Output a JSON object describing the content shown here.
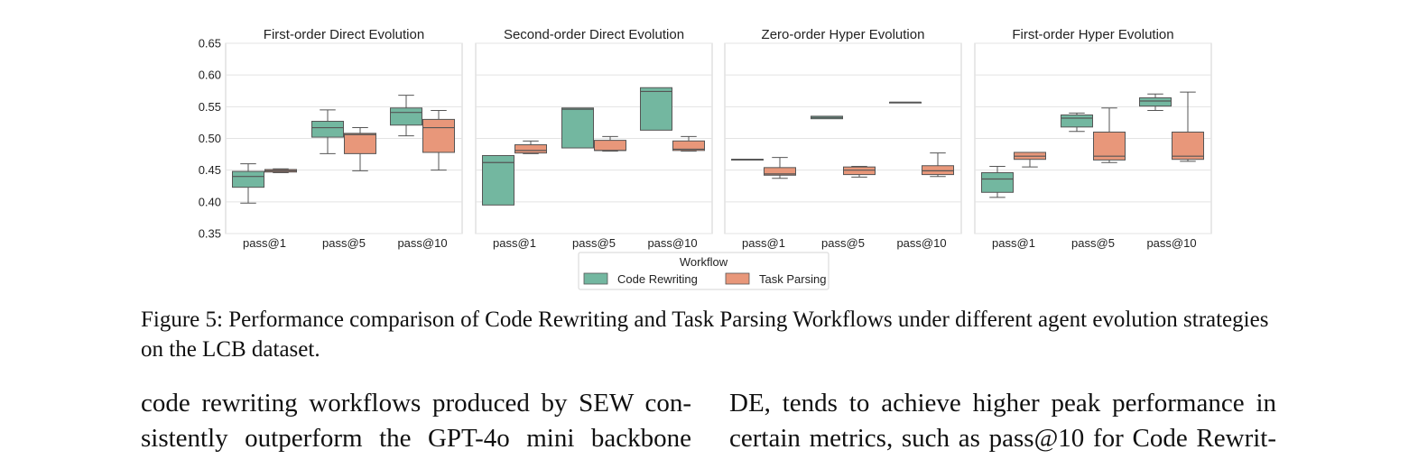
{
  "chart_data": {
    "type": "box",
    "y_axis": {
      "ylim": [
        0.35,
        0.65
      ],
      "ticks": [
        0.35,
        0.4,
        0.45,
        0.5,
        0.55,
        0.6,
        0.65
      ],
      "tick_labels": [
        "0.35",
        "0.40",
        "0.45",
        "0.50",
        "0.55",
        "0.60",
        "0.65"
      ]
    },
    "grid": true,
    "categories": [
      "pass@1",
      "pass@5",
      "pass@10"
    ],
    "colors": {
      "Code Rewriting": "#73b7a0",
      "Task Parsing": "#e8977a"
    },
    "legend": {
      "title": "Workflow",
      "placement": "bottom-center",
      "entries": [
        "Code Rewriting",
        "Task Parsing"
      ]
    },
    "panels": [
      {
        "title": "First-order Direct Evolution",
        "series": [
          {
            "name": "Code Rewriting",
            "boxes": [
              {
                "min": 0.398,
                "q1": 0.423,
                "median": 0.44,
                "q3": 0.448,
                "max": 0.46
              },
              {
                "min": 0.476,
                "q1": 0.502,
                "median": 0.517,
                "q3": 0.527,
                "max": 0.545
              },
              {
                "min": 0.504,
                "q1": 0.521,
                "median": 0.541,
                "q3": 0.548,
                "max": 0.568
              }
            ]
          },
          {
            "name": "Task Parsing",
            "boxes": [
              {
                "min": 0.446,
                "q1": 0.447,
                "median": 0.449,
                "q3": 0.451,
                "max": 0.452
              },
              {
                "min": 0.449,
                "q1": 0.476,
                "median": 0.506,
                "q3": 0.508,
                "max": 0.517
              },
              {
                "min": 0.45,
                "q1": 0.478,
                "median": 0.517,
                "q3": 0.53,
                "max": 0.544
              }
            ]
          }
        ]
      },
      {
        "title": "Second-order Direct Evolution",
        "series": [
          {
            "name": "Code Rewriting",
            "boxes": [
              {
                "min": 0.395,
                "q1": 0.395,
                "median": 0.462,
                "q3": 0.473,
                "max": 0.473
              },
              {
                "min": 0.485,
                "q1": 0.485,
                "median": 0.546,
                "q3": 0.548,
                "max": 0.548
              },
              {
                "min": 0.513,
                "q1": 0.513,
                "median": 0.574,
                "q3": 0.58,
                "max": 0.58
              }
            ]
          },
          {
            "name": "Task Parsing",
            "boxes": [
              {
                "min": 0.476,
                "q1": 0.477,
                "median": 0.481,
                "q3": 0.49,
                "max": 0.496
              },
              {
                "min": 0.48,
                "q1": 0.481,
                "median": 0.481,
                "q3": 0.497,
                "max": 0.503
              },
              {
                "min": 0.48,
                "q1": 0.481,
                "median": 0.483,
                "q3": 0.496,
                "max": 0.503
              }
            ]
          }
        ]
      },
      {
        "title": "Zero-order Hyper Evolution",
        "series": [
          {
            "name": "Code Rewriting",
            "boxes": [
              {
                "min": 0.467,
                "q1": 0.467,
                "median": 0.467,
                "q3": 0.467,
                "max": 0.467
              },
              {
                "min": 0.531,
                "q1": 0.531,
                "median": 0.533,
                "q3": 0.535,
                "max": 0.535
              },
              {
                "min": 0.557,
                "q1": 0.557,
                "median": 0.557,
                "q3": 0.557,
                "max": 0.557
              }
            ]
          },
          {
            "name": "Task Parsing",
            "boxes": [
              {
                "min": 0.437,
                "q1": 0.442,
                "median": 0.444,
                "q3": 0.454,
                "max": 0.47
              },
              {
                "min": 0.439,
                "q1": 0.443,
                "median": 0.45,
                "q3": 0.455,
                "max": 0.456
              },
              {
                "min": 0.44,
                "q1": 0.443,
                "median": 0.449,
                "q3": 0.457,
                "max": 0.477
              }
            ]
          }
        ]
      },
      {
        "title": "First-order Hyper Evolution",
        "series": [
          {
            "name": "Code Rewriting",
            "boxes": [
              {
                "min": 0.407,
                "q1": 0.415,
                "median": 0.436,
                "q3": 0.446,
                "max": 0.456
              },
              {
                "min": 0.511,
                "q1": 0.518,
                "median": 0.532,
                "q3": 0.537,
                "max": 0.54
              },
              {
                "min": 0.544,
                "q1": 0.551,
                "median": 0.559,
                "q3": 0.564,
                "max": 0.57
              }
            ]
          },
          {
            "name": "Task Parsing",
            "boxes": [
              {
                "min": 0.455,
                "q1": 0.467,
                "median": 0.472,
                "q3": 0.478,
                "max": 0.478
              },
              {
                "min": 0.462,
                "q1": 0.466,
                "median": 0.472,
                "q3": 0.51,
                "max": 0.548
              },
              {
                "min": 0.464,
                "q1": 0.467,
                "median": 0.472,
                "q3": 0.51,
                "max": 0.573
              }
            ]
          }
        ]
      }
    ]
  },
  "caption": "Figure 5: Performance comparison of Code Rewriting and Task Parsing Workflows under different agent evolution strategies on the LCB dataset.",
  "body": {
    "left_lines": [
      "code rewriting workflows produced by SEW con-",
      "sistently outperform the GPT-4o mini backbone"
    ],
    "right_lines": [
      "DE, tends to achieve higher peak performance in",
      "certain metrics, such as pass@10 for Code Rewrit-"
    ]
  }
}
